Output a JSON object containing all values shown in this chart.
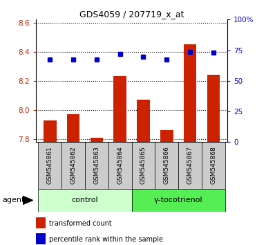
{
  "title": "GDS4059 / 207719_x_at",
  "samples": [
    "GSM545861",
    "GSM545862",
    "GSM545863",
    "GSM545864",
    "GSM545865",
    "GSM545866",
    "GSM545867",
    "GSM545868"
  ],
  "red_values": [
    7.93,
    7.97,
    7.81,
    8.23,
    8.07,
    7.86,
    8.45,
    8.24
  ],
  "blue_values": [
    8.345,
    8.345,
    8.345,
    8.385,
    8.365,
    8.345,
    8.4,
    8.395
  ],
  "ylim_left": [
    7.78,
    8.62
  ],
  "ylim_right": [
    0,
    100
  ],
  "yticks_left": [
    7.8,
    8.0,
    8.2,
    8.4,
    8.6
  ],
  "yticks_right": [
    0,
    25,
    50,
    75,
    100
  ],
  "ytick_labels_right": [
    "0",
    "25",
    "50",
    "75",
    "100%"
  ],
  "groups": [
    {
      "label": "control",
      "indices": [
        0,
        1,
        2,
        3
      ],
      "facecolor": "#ccffcc"
    },
    {
      "label": "γ-tocotrienol",
      "indices": [
        4,
        5,
        6,
        7
      ],
      "facecolor": "#55ee55"
    }
  ],
  "agent_label": "agent",
  "legend_red": "transformed count",
  "legend_blue": "percentile rank within the sample",
  "bar_color": "#cc2200",
  "dot_color": "#0000cc",
  "bar_width": 0.55,
  "left_tick_color": "#cc2200",
  "right_tick_color": "#0000cc",
  "sample_box_color": "#cccccc",
  "title_fontsize": 9,
  "tick_fontsize": 7.5,
  "label_fontsize": 8
}
